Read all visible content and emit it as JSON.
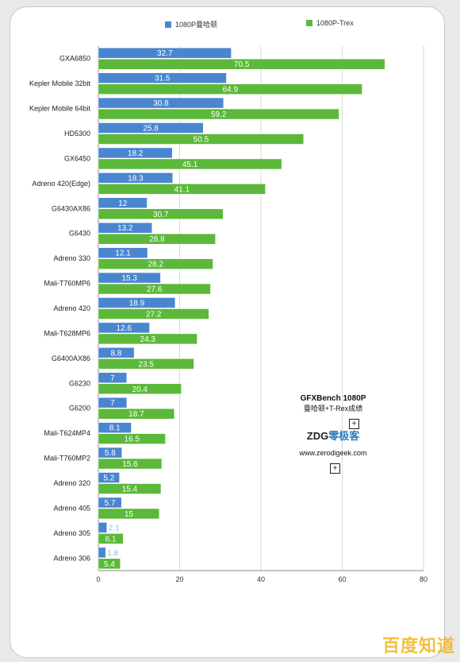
{
  "chart_data": {
    "type": "bar",
    "orientation": "horizontal",
    "categories": [
      "GXA6850",
      "Kepler Mobile 32bit",
      "Kepler Mobile 64bit",
      "HD5300",
      "GX6450",
      "Adreno 420(Edge)",
      "G6430AX86",
      "G6430",
      "Adreno 330",
      "Mali-T760MP6",
      "Adreno 420",
      "Mali-T628MP6",
      "G6400AX86",
      "G6230",
      "G6200",
      "Mali-T624MP4",
      "Mali-T760MP2",
      "Adreno 320",
      "Adreno 405",
      "Adreno 305",
      "Adreno 306"
    ],
    "series": [
      {
        "name": "1080P曼哈顿",
        "color": "#4a86d0",
        "values": [
          32.7,
          31.5,
          30.8,
          25.8,
          18.2,
          18.3,
          12,
          13.2,
          12.1,
          15.3,
          18.9,
          12.6,
          8.8,
          7,
          7,
          8.1,
          5.8,
          5.2,
          5.7,
          2.1,
          1.8
        ]
      },
      {
        "name": "1080P-Trex",
        "color": "#5cb83a",
        "values": [
          70.5,
          64.9,
          59.2,
          50.5,
          45.1,
          41.1,
          30.7,
          28.8,
          28.2,
          27.6,
          27.2,
          24.3,
          23.5,
          20.4,
          18.7,
          16.5,
          15.6,
          15.4,
          15,
          6.1,
          5.4
        ]
      }
    ],
    "value_labels_series1": [
      "32.7",
      "31.5",
      "30.8",
      "25.8",
      "18.2",
      "18.3",
      "12",
      "13.2",
      "12.1",
      "15.3",
      "18.9",
      "12.6",
      "8.8",
      "7",
      "7",
      "8.1",
      "5.8",
      "5.2",
      "5.7",
      "2.1",
      "1.8"
    ],
    "value_labels_series2": [
      "70.5",
      "64.9",
      "59.2",
      "50.5",
      "45.1",
      "41.1",
      "30.7",
      "28.8",
      "28.2",
      "27.6",
      "27.2",
      "24.3",
      "23.5",
      "20.4",
      "18.7",
      "16.5",
      "15.6",
      "15.4",
      "15",
      "6.1",
      "5.4"
    ],
    "xlim": [
      0,
      80
    ],
    "xticks": [
      "0",
      "20",
      "40",
      "60",
      "80"
    ],
    "grid": true,
    "legend_position": "top-center"
  },
  "info": {
    "title": "GFXBench 1080P",
    "subtitle": "曼哈顿+T-Rex成绩",
    "logo_latin": "ZDG",
    "logo_cn": "零极客",
    "url": "www.zerodigeek.com",
    "plus_symbol": "+"
  },
  "watermark": "百度知道"
}
